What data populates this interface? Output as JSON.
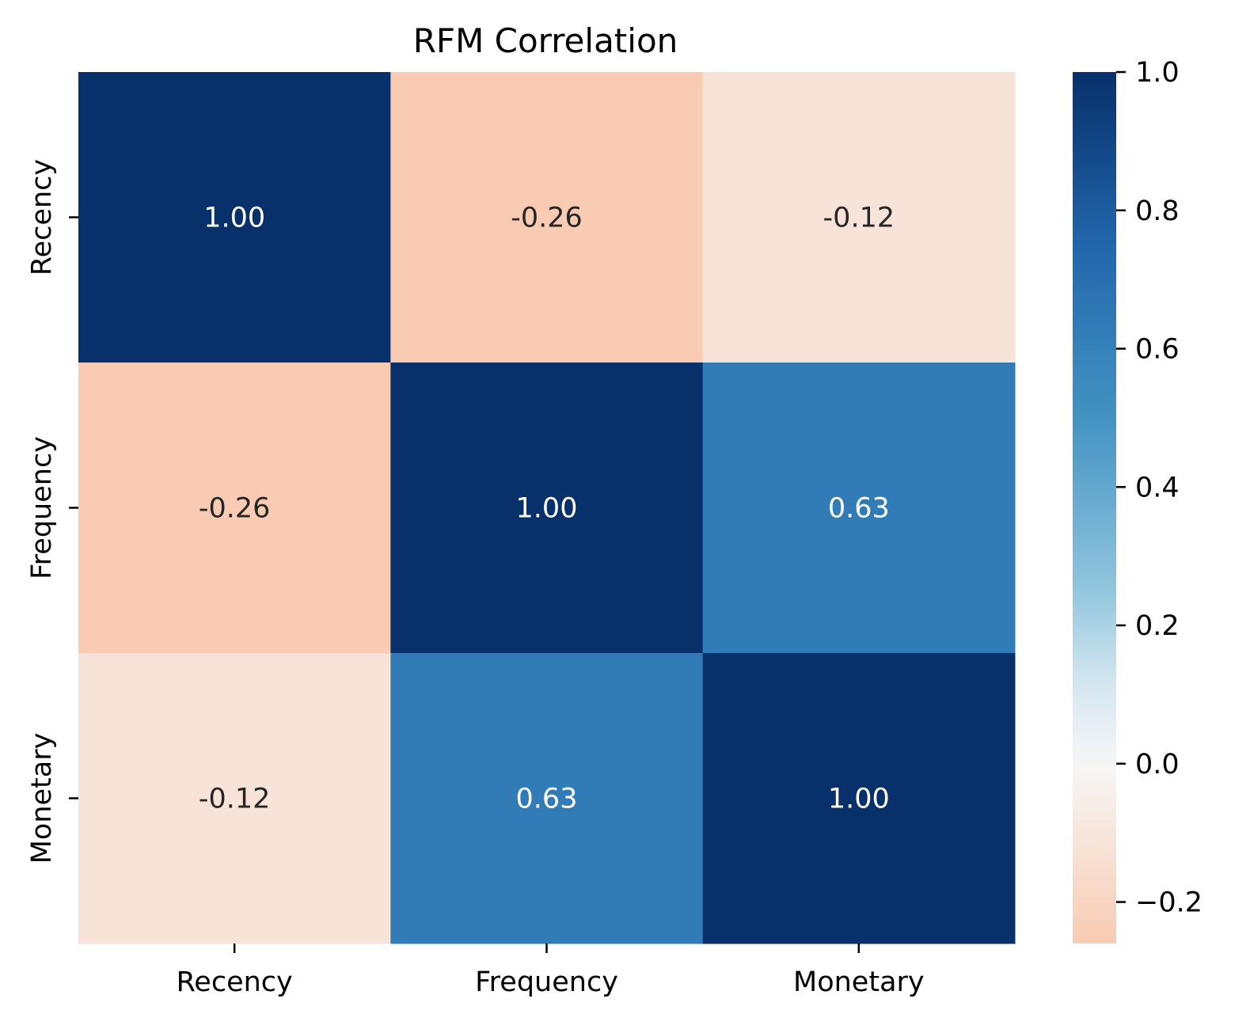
{
  "chart_data": {
    "type": "heatmap",
    "title": "RFM Correlation",
    "xlabel": "",
    "ylabel": "",
    "row_labels": [
      "Recency",
      "Frequency",
      "Monetary"
    ],
    "column_labels": [
      "Recency",
      "Frequency",
      "Monetary"
    ],
    "values": [
      [
        1.0,
        -0.26,
        -0.12
      ],
      [
        -0.26,
        1.0,
        0.63
      ],
      [
        -0.12,
        0.63,
        1.0
      ]
    ],
    "cell_labels": [
      [
        "1.00",
        "-0.26",
        "-0.12"
      ],
      [
        "-0.26",
        "1.00",
        "0.63"
      ],
      [
        "-0.12",
        "0.63",
        "1.00"
      ]
    ],
    "colormap": "RdBu",
    "center": 0.0,
    "vmin": -0.26,
    "vmax": 1.0,
    "colorbar": {
      "ticks": [
        -0.2,
        0.0,
        0.2,
        0.4,
        0.6,
        0.8,
        1.0
      ],
      "tick_labels": [
        "−0.2",
        "0.0",
        "0.2",
        "0.4",
        "0.6",
        "0.8",
        "1.0"
      ],
      "range": [
        -0.26,
        1.0
      ]
    },
    "grid": false,
    "annotations": true,
    "colors": {
      "dark_blue": "#08306b",
      "mid_blue": "#428dc0",
      "light_salmon": "#f8cbb2",
      "pale_salmon": "#fbe4d7",
      "white": "#f7f7f7",
      "text_dark": "#262626",
      "text_light": "#ffffff"
    }
  }
}
